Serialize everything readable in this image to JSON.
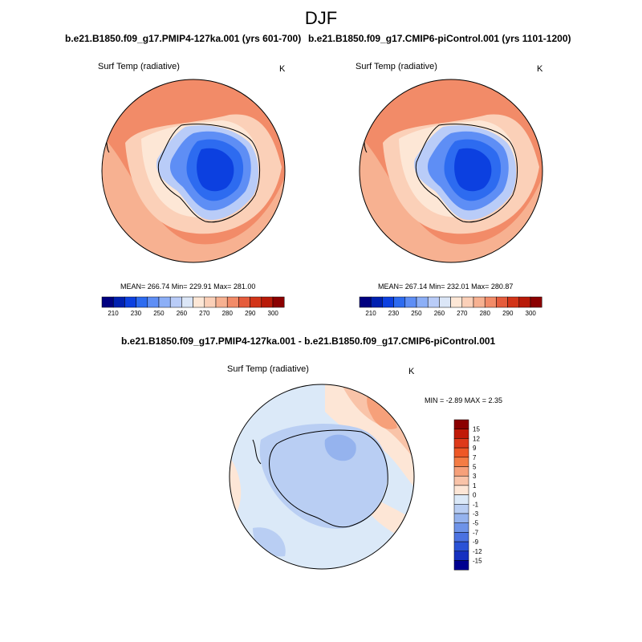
{
  "season": "DJF",
  "panels": [
    {
      "title": "b.e21.B1850.f09_g17.PMIP4-127ka.001 (yrs 601-700)",
      "variable": "Surf Temp (radiative)",
      "units": "K",
      "stats": "MEAN= 266.74  Min= 229.91  Max= 281.00"
    },
    {
      "title": "b.e21.B1850.f09_g17.CMIP6-piControl.001 (yrs 1101-1200)",
      "variable": "Surf Temp (radiative)",
      "units": "K",
      "stats": "MEAN= 267.14  Min= 232.01  Max= 280.87"
    }
  ],
  "colorbar_abs": {
    "colors": [
      "#000080",
      "#0020b0",
      "#0c40e0",
      "#2d6bf0",
      "#5e8ef5",
      "#8caff7",
      "#b9ccf8",
      "#dbe6f7",
      "#fde7d6",
      "#fbd0b8",
      "#f7b191",
      "#f28b68",
      "#e55c3c",
      "#d23418",
      "#b81a08",
      "#8b0000"
    ],
    "tick_labels": [
      "210",
      "230",
      "250",
      "260",
      "270",
      "280",
      "290",
      "300"
    ]
  },
  "diff": {
    "title": "b.e21.B1850.f09_g17.PMIP4-127ka.001 - b.e21.B1850.f09_g17.CMIP6-piControl.001",
    "variable": "Surf Temp (radiative)",
    "units": "K",
    "stats": "MIN =  -2.89 MAX =   2.35",
    "colorbar": {
      "colors": [
        "#8b0000",
        "#c01a08",
        "#de3a1a",
        "#ee5826",
        "#f47c44",
        "#f6a07a",
        "#f9c3a8",
        "#fde6d6",
        "#dbe9f8",
        "#b9cef3",
        "#95b3ee",
        "#6e93e8",
        "#4b72e1",
        "#2a52d6",
        "#1530c0",
        "#000090"
      ],
      "tick_labels": [
        "15",
        "12",
        "9",
        "7",
        "5",
        "3",
        "1",
        "0",
        "-1",
        "-3",
        "-5",
        "-7",
        "-9",
        "-12",
        "-15"
      ]
    }
  }
}
